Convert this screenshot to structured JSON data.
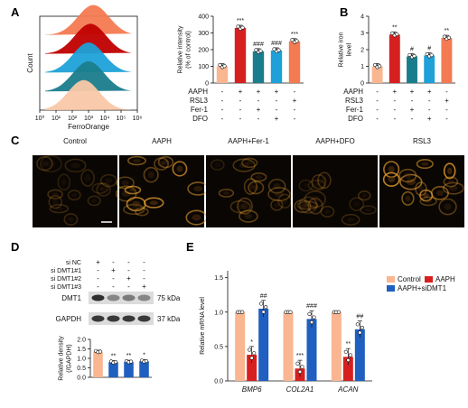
{
  "panels": {
    "A": {
      "letter": "A",
      "histogram": {
        "xlabel": "FerroOrange",
        "ylabel": "Count",
        "xticks": [
          "10⁰",
          "10¹",
          "10²",
          "10³",
          "10⁴",
          "10⁵",
          "10⁶"
        ],
        "colors": [
          "#f47a52",
          "#c00000",
          "#1da1d8",
          "#1a7d8c",
          "#f9c8a8"
        ]
      },
      "chart": {
        "type": "bar",
        "ylabel": "Relative intensity\n(% of control)",
        "ylim": [
          0,
          400
        ],
        "yticks": [
          "0",
          "100",
          "200",
          "300",
          "400"
        ],
        "values": [
          100,
          330,
          190,
          195,
          250
        ],
        "colors": [
          "#f9b690",
          "#d62020",
          "#1a7d8c",
          "#1ea0d8",
          "#f47a52"
        ],
        "significance": [
          "",
          "***",
          "###",
          "###",
          "***"
        ],
        "conditions": [
          {
            "name": "AAPH",
            "marks": [
              "-",
              "+",
              "+",
              "+",
              "-"
            ]
          },
          {
            "name": "RSL3",
            "marks": [
              "-",
              "-",
              "-",
              "-",
              "+"
            ]
          },
          {
            "name": "Fer-1",
            "marks": [
              "-",
              "-",
              "+",
              "-",
              "-"
            ]
          },
          {
            "name": "DFO",
            "marks": [
              "-",
              "-",
              "-",
              "+",
              "-"
            ]
          }
        ]
      }
    },
    "B": {
      "letter": "B",
      "chart": {
        "type": "bar",
        "ylabel": "Relative iron\nlevel",
        "ylim": [
          0,
          4
        ],
        "yticks": [
          "0",
          "1",
          "2",
          "3",
          "4"
        ],
        "values": [
          1.0,
          2.9,
          1.6,
          1.65,
          2.7
        ],
        "colors": [
          "#f9b690",
          "#d62020",
          "#1a7d8c",
          "#1ea0d8",
          "#f47a52"
        ],
        "significance": [
          "",
          "**",
          "#",
          "#",
          "**"
        ],
        "conditions": [
          {
            "name": "AAPH",
            "marks": [
              "-",
              "+",
              "+",
              "+",
              "-"
            ]
          },
          {
            "name": "RSL3",
            "marks": [
              "-",
              "-",
              "-",
              "-",
              "+"
            ]
          },
          {
            "name": "Fer-1",
            "marks": [
              "-",
              "-",
              "+",
              "-",
              "-"
            ]
          },
          {
            "name": "DFO",
            "marks": [
              "-",
              "-",
              "-",
              "+",
              "-"
            ]
          }
        ]
      }
    },
    "C": {
      "letter": "C",
      "labels": [
        "Control",
        "AAPH",
        "AAPH+Fer-1",
        "AAPH+DFO",
        "RSL3"
      ],
      "intensity": [
        0.35,
        0.9,
        0.45,
        0.4,
        0.95
      ]
    },
    "D": {
      "letter": "D",
      "conditions": [
        {
          "name": "si NC",
          "marks": [
            "+",
            "-",
            "-",
            "-"
          ]
        },
        {
          "name": "si DMT1#1",
          "marks": [
            "-",
            "+",
            "-",
            "-"
          ]
        },
        {
          "name": "si DMT1#2",
          "marks": [
            "-",
            "-",
            "+",
            "-"
          ]
        },
        {
          "name": "si DMT1#3",
          "marks": [
            "-",
            "-",
            "-",
            "+"
          ]
        }
      ],
      "blots": [
        {
          "label": "DMT1",
          "kda": "75 kDa",
          "intensity": [
            0.95,
            0.55,
            0.6,
            0.55
          ]
        },
        {
          "label": "GAPDH",
          "kda": "37 kDa",
          "intensity": [
            0.9,
            0.9,
            0.9,
            0.9
          ]
        }
      ],
      "chart": {
        "type": "bar",
        "ylabel": "Relative density\n(/GAPDH)",
        "ylim": [
          0,
          2.0
        ],
        "yticks": [
          "0.0",
          "0.5",
          "1.0",
          "1.5",
          "2.0"
        ],
        "values": [
          1.35,
          0.8,
          0.82,
          0.85
        ],
        "colors": [
          "#f9b690",
          "#1f5fbf",
          "#1f5fbf",
          "#1f5fbf"
        ],
        "significance": [
          "",
          "**",
          "**",
          "*"
        ]
      }
    },
    "E": {
      "letter": "E",
      "chart": {
        "type": "bar",
        "ylabel": "Relative mRNA level",
        "ylim": [
          0,
          1.6
        ],
        "yticks": [
          "0.0",
          "0.5",
          "1.0",
          "1.5"
        ],
        "categories": [
          "BMP6",
          "COL2A1",
          "ACAN"
        ],
        "series": [
          {
            "name": "Control",
            "values": [
              1.0,
              1.0,
              1.0
            ],
            "color": "#f9b690"
          },
          {
            "name": "AAPH",
            "values": [
              0.38,
              0.18,
              0.35
            ],
            "color": "#d62020"
          },
          {
            "name": "AAPH+siDMT1",
            "values": [
              1.05,
              0.9,
              0.75
            ],
            "color": "#1f5fbf"
          }
        ],
        "significance": [
          [
            "",
            "*",
            "##"
          ],
          [
            "",
            "***",
            "###"
          ],
          [
            "",
            "**",
            "##"
          ]
        ],
        "legend": "top-right"
      }
    }
  }
}
